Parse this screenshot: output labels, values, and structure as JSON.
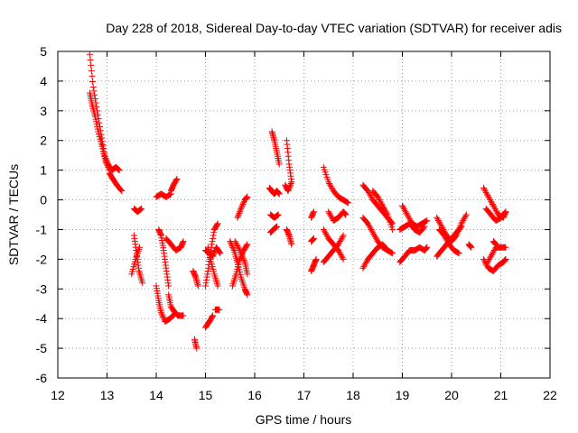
{
  "chart_data": {
    "type": "scatter",
    "title": "Day 228 of 2018, Sidereal Day-to-day VTEC variation (SDTVAR) for receiver adis",
    "xlabel": "GPS time / hours",
    "ylabel": "SDTVAR / TECUs",
    "xlim": [
      12,
      22
    ],
    "ylim": [
      -6,
      5
    ],
    "xticks": [
      12,
      13,
      14,
      15,
      16,
      17,
      18,
      19,
      20,
      21,
      22
    ],
    "yticks": [
      -6,
      -5,
      -4,
      -3,
      -2,
      -1,
      0,
      1,
      2,
      3,
      4,
      5
    ],
    "grid": true,
    "marker": "+",
    "series_color": "#ff0000",
    "segments": [
      {
        "t": [
          12.65,
          12.72,
          12.8,
          12.88,
          12.95,
          13.02,
          13.1,
          13.18,
          13.25
        ],
        "v": [
          4.9,
          3.8,
          3.0,
          2.2,
          1.5,
          1.2,
          1.0,
          1.1,
          1.0
        ]
      },
      {
        "t": [
          12.65,
          12.7,
          12.76,
          12.82,
          12.9,
          12.97,
          13.05
        ],
        "v": [
          3.6,
          3.2,
          2.8,
          2.3,
          1.8,
          1.3,
          1.0
        ]
      },
      {
        "t": [
          13.05,
          13.12,
          13.2,
          13.3
        ],
        "v": [
          0.9,
          0.7,
          0.5,
          0.3
        ]
      },
      {
        "t": [
          13.55,
          13.62,
          13.7
        ],
        "v": [
          -0.3,
          -0.4,
          -0.3
        ]
      },
      {
        "t": [
          13.55,
          13.6,
          13.65,
          13.72
        ],
        "v": [
          -1.2,
          -1.8,
          -2.4,
          -2.8
        ]
      },
      {
        "t": [
          13.5,
          13.58,
          13.66
        ],
        "v": [
          -2.5,
          -2.0,
          -1.6
        ]
      },
      {
        "t": [
          14.0,
          14.1,
          14.2,
          14.3
        ],
        "v": [
          0.1,
          0.2,
          0.1,
          0.2
        ]
      },
      {
        "t": [
          14.3,
          14.35,
          14.42
        ],
        "v": [
          0.3,
          0.5,
          0.7
        ]
      },
      {
        "t": [
          14.05,
          14.1,
          14.15,
          14.2,
          14.25
        ],
        "v": [
          -1.0,
          -1.2,
          -1.7,
          -2.3,
          -2.9
        ]
      },
      {
        "t": [
          14.25,
          14.3,
          14.38,
          14.45,
          14.55
        ],
        "v": [
          -3.2,
          -3.6,
          -3.8,
          -3.9,
          -3.9
        ]
      },
      {
        "t": [
          14.0,
          14.05,
          14.1,
          14.18,
          14.28,
          14.4
        ],
        "v": [
          -2.9,
          -3.4,
          -3.8,
          -4.1,
          -4.0,
          -3.8
        ]
      },
      {
        "t": [
          14.2,
          14.3,
          14.4,
          14.5,
          14.55
        ],
        "v": [
          -1.3,
          -1.5,
          -1.7,
          -1.6,
          -1.4
        ]
      },
      {
        "t": [
          14.75,
          14.8,
          14.85
        ],
        "v": [
          -2.4,
          -2.6,
          -2.9
        ]
      },
      {
        "t": [
          14.78,
          14.82
        ],
        "v": [
          -4.7,
          -5.0
        ]
      },
      {
        "t": [
          15.0,
          15.06,
          15.12,
          15.18,
          15.25
        ],
        "v": [
          -2.9,
          -2.3,
          -1.6,
          -1.0,
          -0.8
        ]
      },
      {
        "t": [
          15.05,
          15.1,
          15.18,
          15.25
        ],
        "v": [
          -1.6,
          -2.0,
          -2.5,
          -2.9
        ]
      },
      {
        "t": [
          15.0,
          15.08,
          15.15,
          15.22,
          15.3
        ],
        "v": [
          -1.7,
          -1.8,
          -1.9,
          -1.6,
          -1.8
        ]
      },
      {
        "t": [
          15.0,
          15.08,
          15.15
        ],
        "v": [
          -4.3,
          -4.1,
          -3.9
        ]
      },
      {
        "t": [
          15.2,
          15.28
        ],
        "v": [
          -3.7,
          -3.7
        ]
      },
      {
        "t": [
          15.5,
          15.58,
          15.65,
          15.72,
          15.8,
          15.85
        ],
        "v": [
          -1.4,
          -1.7,
          -2.1,
          -2.6,
          -3.0,
          -3.2
        ]
      },
      {
        "t": [
          15.55,
          15.62,
          15.7,
          15.78,
          15.85
        ],
        "v": [
          -2.9,
          -2.5,
          -2.0,
          -1.7,
          -1.5
        ]
      },
      {
        "t": [
          15.6,
          15.7,
          15.8,
          15.85
        ],
        "v": [
          -1.4,
          -1.7,
          -2.1,
          -2.5
        ]
      },
      {
        "t": [
          15.65,
          15.72,
          15.8,
          15.85
        ],
        "v": [
          -0.6,
          -0.3,
          0.0,
          0.1
        ]
      },
      {
        "t": [
          16.35,
          16.4,
          16.45,
          16.5
        ],
        "v": [
          2.3,
          2.0,
          1.6,
          1.2
        ]
      },
      {
        "t": [
          16.3,
          16.35,
          16.4,
          16.45,
          16.5
        ],
        "v": [
          0.4,
          0.3,
          0.2,
          0.3,
          0.2
        ]
      },
      {
        "t": [
          16.32,
          16.4,
          16.48
        ],
        "v": [
          -0.5,
          -0.6,
          -0.5
        ]
      },
      {
        "t": [
          16.32,
          16.38,
          16.45
        ],
        "v": [
          -1.1,
          -1.0,
          -0.9
        ]
      },
      {
        "t": [
          16.65,
          16.7,
          16.75
        ],
        "v": [
          2.0,
          1.2,
          0.6
        ]
      },
      {
        "t": [
          16.62,
          16.68,
          16.75
        ],
        "v": [
          0.5,
          0.3,
          0.6
        ]
      },
      {
        "t": [
          16.65,
          16.7,
          16.75
        ],
        "v": [
          -1.0,
          -1.2,
          -1.5
        ]
      },
      {
        "t": [
          17.15,
          17.2
        ],
        "v": [
          -0.6,
          -0.4
        ]
      },
      {
        "t": [
          17.15,
          17.2
        ],
        "v": [
          -1.4,
          -1.3
        ]
      },
      {
        "t": [
          17.15,
          17.2,
          17.25
        ],
        "v": [
          -2.4,
          -2.2,
          -2.0
        ]
      },
      {
        "t": [
          17.4,
          17.5,
          17.6,
          17.7,
          17.8,
          17.9
        ],
        "v": [
          1.1,
          0.6,
          0.3,
          0.1,
          0.0,
          -0.1
        ]
      },
      {
        "t": [
          17.4,
          17.5,
          17.6,
          17.7,
          17.8
        ],
        "v": [
          -1.0,
          -1.3,
          -1.5,
          -1.7,
          -2.0
        ]
      },
      {
        "t": [
          17.4,
          17.5,
          17.6,
          17.7,
          17.8
        ],
        "v": [
          -2.1,
          -1.9,
          -1.7,
          -1.5,
          -1.2
        ]
      },
      {
        "t": [
          17.5,
          17.6,
          17.7,
          17.8,
          17.85
        ],
        "v": [
          -0.4,
          -0.7,
          -0.6,
          -0.4,
          -0.5
        ]
      },
      {
        "t": [
          18.2,
          18.3,
          18.4,
          18.5,
          18.6,
          18.7,
          18.8
        ],
        "v": [
          0.5,
          0.3,
          0.0,
          -0.2,
          -0.4,
          -0.6,
          -0.8
        ]
      },
      {
        "t": [
          18.2,
          18.3,
          18.4,
          18.5,
          18.6,
          18.7
        ],
        "v": [
          -0.6,
          -0.8,
          -1.1,
          -1.4,
          -1.6,
          -1.7
        ]
      },
      {
        "t": [
          18.2,
          18.3,
          18.4,
          18.5,
          18.6,
          18.7,
          18.8
        ],
        "v": [
          -2.3,
          -2.0,
          -1.8,
          -1.6,
          -1.5,
          -1.7,
          -1.8
        ]
      },
      {
        "t": [
          18.4,
          18.5,
          18.6,
          18.7,
          18.8
        ],
        "v": [
          0.3,
          0.1,
          -0.2,
          -0.5,
          -1.0
        ]
      },
      {
        "t": [
          19.0,
          19.1,
          19.2,
          19.3,
          19.4,
          19.5
        ],
        "v": [
          -0.2,
          -0.5,
          -0.8,
          -0.9,
          -0.8,
          -0.7
        ]
      },
      {
        "t": [
          18.95,
          19.05,
          19.15,
          19.25,
          19.35,
          19.45
        ],
        "v": [
          -1.0,
          -0.9,
          -0.8,
          -1.0,
          -1.1,
          -0.9
        ]
      },
      {
        "t": [
          18.95,
          19.05,
          19.15,
          19.25,
          19.35,
          19.45,
          19.5
        ],
        "v": [
          -2.1,
          -1.9,
          -1.7,
          -1.7,
          -1.6,
          -1.7,
          -1.6
        ]
      },
      {
        "t": [
          19.7,
          19.8,
          19.9,
          20.0,
          20.1,
          20.2,
          20.3
        ],
        "v": [
          -0.6,
          -0.9,
          -1.2,
          -1.4,
          -1.2,
          -0.8,
          -0.5
        ]
      },
      {
        "t": [
          19.7,
          19.8,
          19.9,
          20.0,
          20.1,
          20.2
        ],
        "v": [
          -1.9,
          -1.7,
          -1.5,
          -1.3,
          -1.1,
          -0.9
        ]
      },
      {
        "t": [
          19.75,
          19.85,
          19.95,
          20.05,
          20.15
        ],
        "v": [
          -1.0,
          -1.2,
          -1.5,
          -1.7,
          -1.8
        ]
      },
      {
        "t": [
          20.35,
          20.4
        ],
        "v": [
          -1.5,
          -1.6
        ]
      },
      {
        "t": [
          20.65,
          20.75,
          20.85,
          20.95,
          21.05,
          21.1
        ],
        "v": [
          0.4,
          0.1,
          -0.2,
          -0.5,
          -0.6,
          -0.4
        ]
      },
      {
        "t": [
          20.7,
          20.8,
          20.9,
          21.0,
          21.1
        ],
        "v": [
          -0.3,
          -0.5,
          -0.7,
          -0.6,
          -0.4
        ]
      },
      {
        "t": [
          20.65,
          20.75,
          20.85,
          20.95,
          21.05,
          21.1
        ],
        "v": [
          -2.0,
          -2.3,
          -2.4,
          -2.2,
          -2.1,
          -2.0
        ]
      },
      {
        "t": [
          20.7,
          20.8,
          20.9,
          21.0,
          21.1
        ],
        "v": [
          -2.2,
          -1.9,
          -1.6,
          -1.6,
          -1.6
        ]
      },
      {
        "t": [
          20.85,
          20.9
        ],
        "v": [
          -1.4,
          -1.5
        ]
      }
    ]
  }
}
